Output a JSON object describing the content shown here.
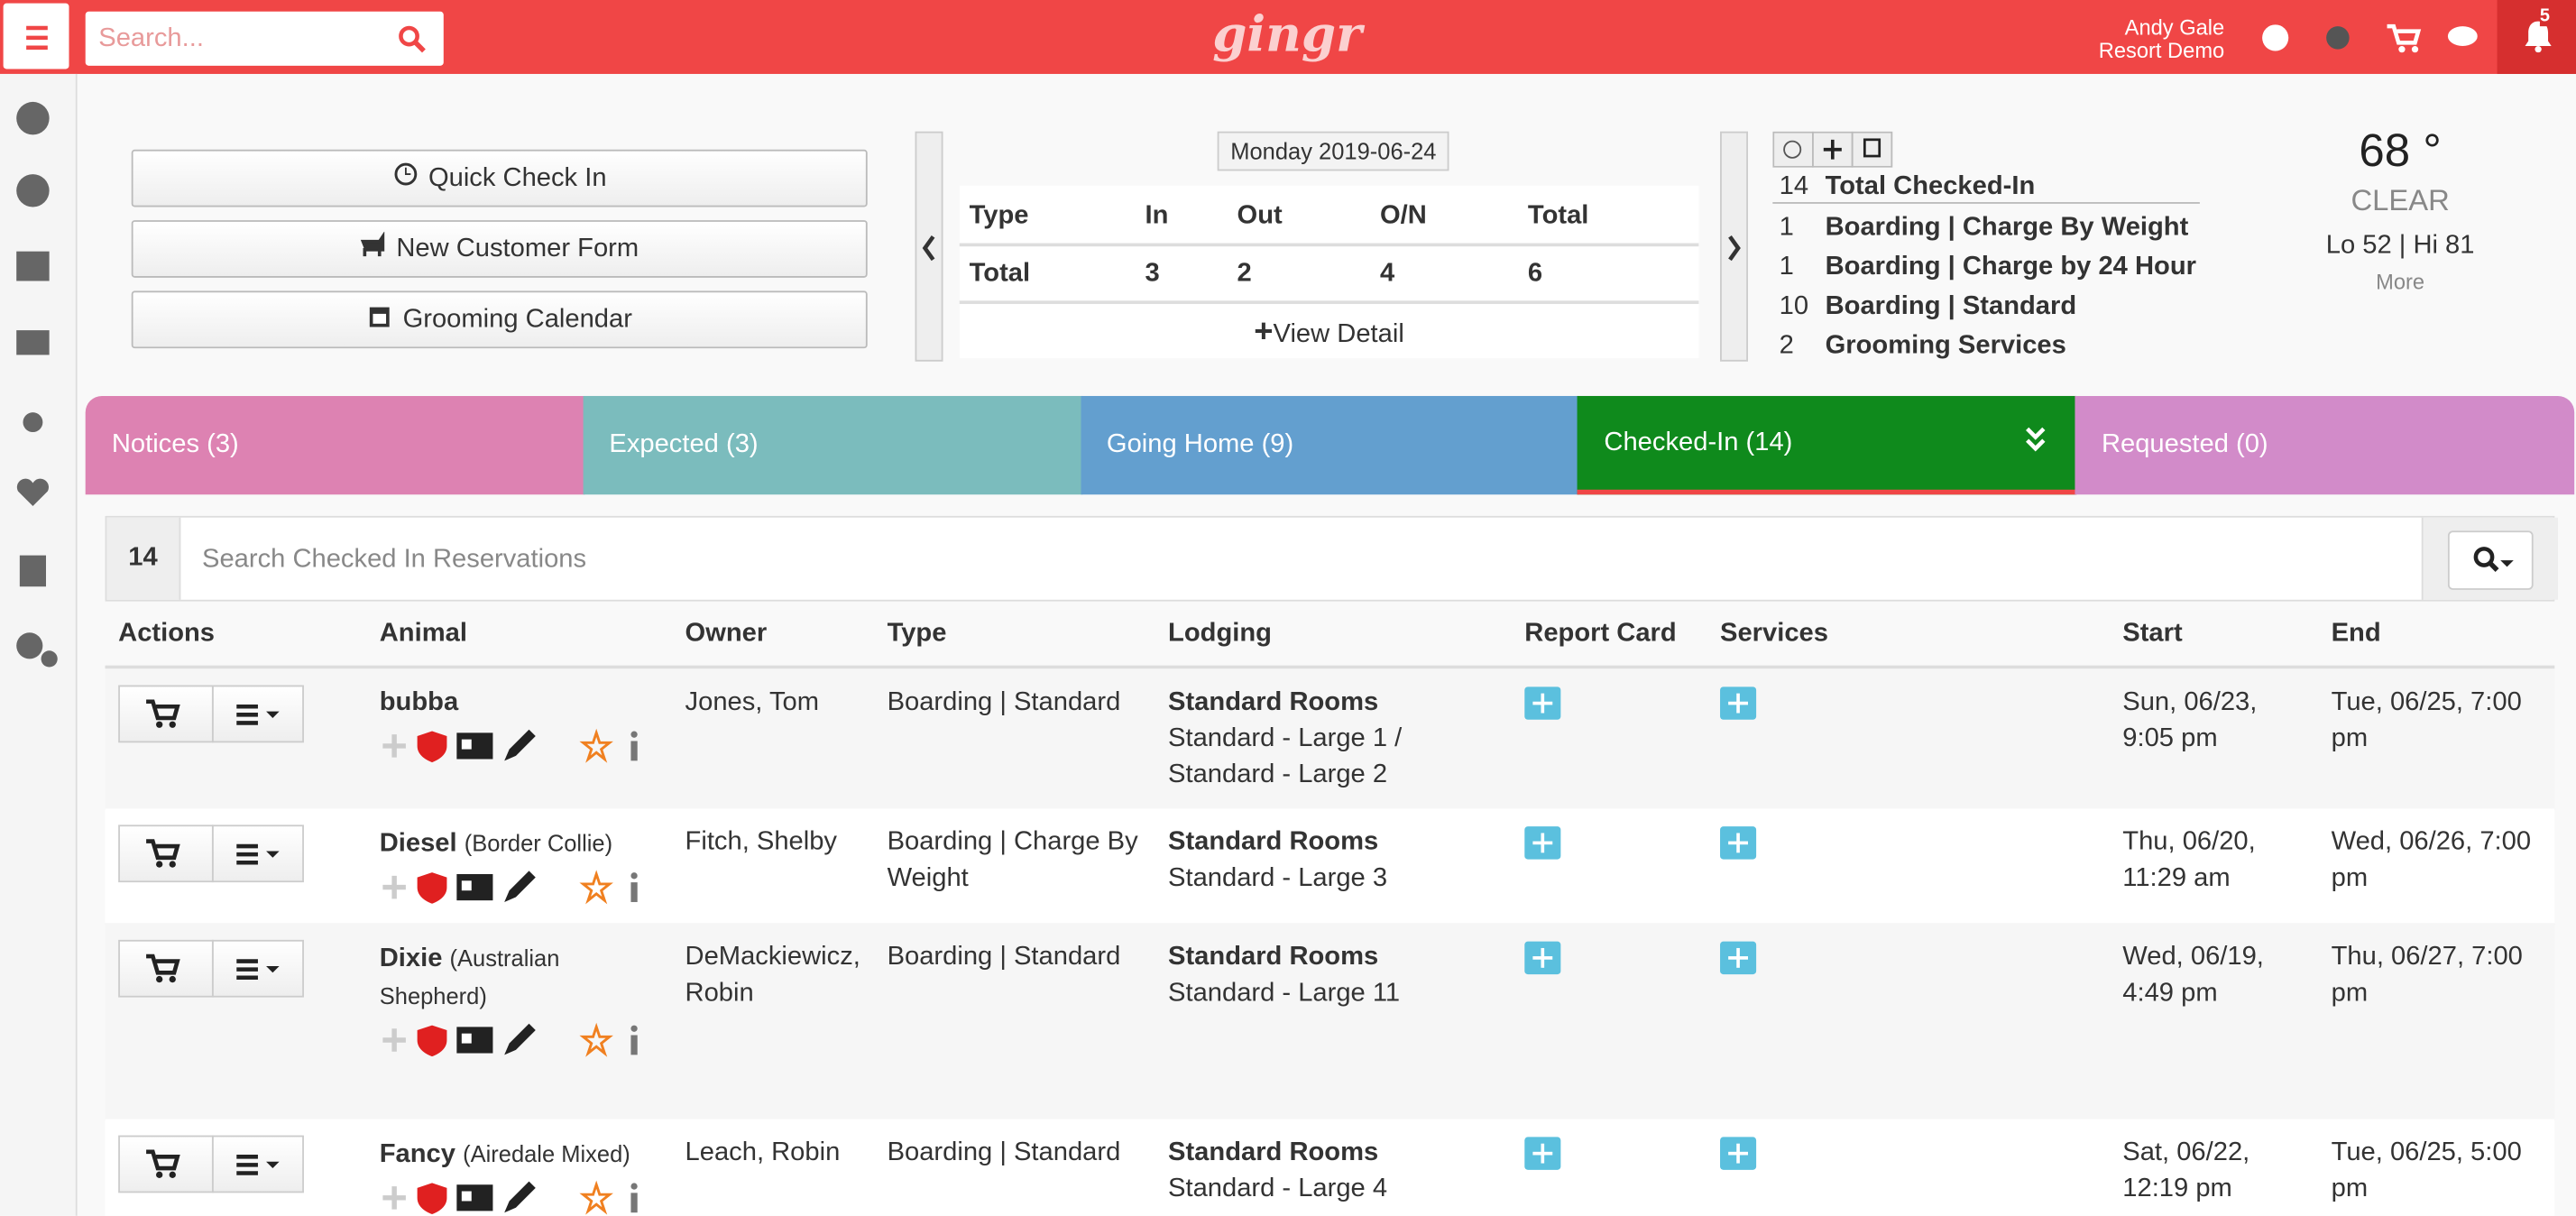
{
  "header": {
    "search_placeholder": "Search...",
    "logo": "gingr",
    "user_name": "Andy Gale",
    "user_org": "Resort Demo",
    "notifications": 5
  },
  "actions": [
    "Quick Check In",
    "New Customer Form",
    "Grooming Calendar"
  ],
  "summary": {
    "date": "Monday 2019-06-24",
    "columns": [
      "Type",
      "In",
      "Out",
      "O/N",
      "Total"
    ],
    "row": [
      "Total",
      3,
      2,
      4,
      6
    ],
    "view_detail": "View Detail"
  },
  "checked_in": {
    "total": 14,
    "total_label": "Total Checked-In",
    "items": [
      {
        "count": 1,
        "label": "Boarding | Charge By Weight"
      },
      {
        "count": 1,
        "label": "Boarding | Charge by 24 Hour"
      },
      {
        "count": 10,
        "label": "Boarding | Standard"
      },
      {
        "count": 2,
        "label": "Grooming Services"
      }
    ]
  },
  "weather": {
    "temperature": 68,
    "unit": "°",
    "condition": "CLEAR",
    "range": "Lo 52 | Hi 81",
    "more": "More"
  },
  "tabs": [
    {
      "label": "Notices (3)",
      "color": "#dd82b2"
    },
    {
      "label": "Expected (3)",
      "color": "#7bbcbd"
    },
    {
      "label": "Going Home (9)",
      "color": "#639fcf"
    },
    {
      "label": "Checked-In (14)",
      "color": "#0f8a1c",
      "active": true
    },
    {
      "label": "Requested (0)",
      "color": "#d28bc9"
    }
  ],
  "list": {
    "count": 14,
    "search_placeholder": "Search Checked In Reservations",
    "columns": [
      "Actions",
      "Animal",
      "Owner",
      "Type",
      "Lodging",
      "Report Card",
      "Services",
      "Start",
      "End"
    ],
    "rows": [
      {
        "name": "bubba",
        "owner": "Jones, Tom",
        "type": "Boarding | Standard",
        "lodging": "Standard Rooms",
        "lodging_detail": "Standard - Large 1 / Standard - Large 2",
        "start": "Sun, 06/23, 9:05 pm",
        "end": "Tue, 06/25, 7:00 pm"
      },
      {
        "name": "Diesel",
        "breed": "(Border Collie)",
        "owner": "Fitch, Shelby",
        "type": "Boarding | Charge By Weight",
        "lodging": "Standard Rooms",
        "lodging_detail": "Standard - Large 3",
        "start": "Thu, 06/20, 11:29 am",
        "end": "Wed, 06/26, 7:00 pm"
      },
      {
        "name": "Dixie",
        "breed": "(Australian Shepherd)",
        "owner": "DeMackiewicz, Robin",
        "type": "Boarding | Standard",
        "lodging": "Standard Rooms",
        "lodging_detail": "Standard - Large 11",
        "start": "Wed, 06/19, 4:49 pm",
        "end": "Thu, 06/27, 7:00 pm"
      },
      {
        "name": "Fancy",
        "breed": "(Airedale Mixed)",
        "owner": "Leach, Robin",
        "type": "Boarding | Standard",
        "lodging": "Standard Rooms",
        "lodging_detail": "Standard - Large 4",
        "start": "Sat, 06/22, 12:19 pm",
        "end": "Tue, 06/25, 5:00 pm"
      }
    ]
  }
}
